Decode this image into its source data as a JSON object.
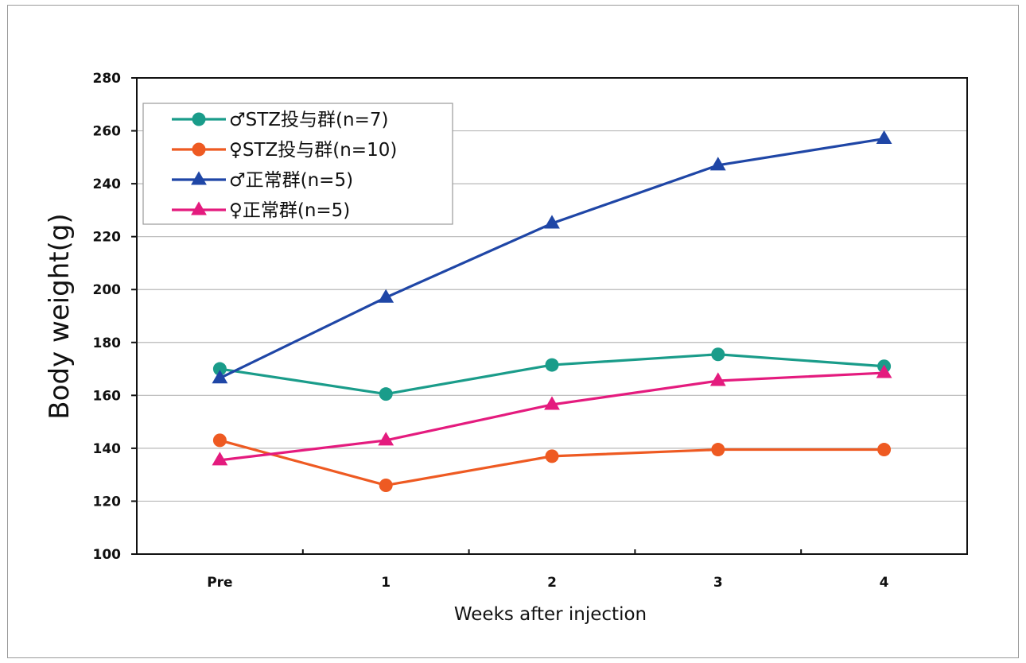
{
  "chart_data": {
    "type": "line",
    "categories": [
      "Pre",
      "1",
      "2",
      "3",
      "4"
    ],
    "xlabel": "Weeks after injection",
    "ylabel": "Body weight(g)",
    "ylim": [
      100,
      280
    ],
    "yticks": [
      100,
      120,
      140,
      160,
      180,
      200,
      220,
      240,
      260,
      280
    ],
    "grid": true,
    "legend_position": "top-left",
    "series": [
      {
        "name": "♂STZ投与群(n=7)",
        "marker": "circle",
        "color": "#1a9c8a",
        "values": [
          170,
          160.5,
          171.5,
          175.5,
          171
        ]
      },
      {
        "name": "♀STZ投与群(n=10)",
        "marker": "circle",
        "color": "#ee5a22",
        "values": [
          143,
          126,
          137,
          139.5,
          139.5
        ]
      },
      {
        "name": "♂正常群(n=5)",
        "marker": "triangle",
        "color": "#1f46a6",
        "values": [
          166.5,
          197,
          225,
          247,
          257
        ]
      },
      {
        "name": "♀正常群(n=5)",
        "marker": "triangle",
        "color": "#e41b7e",
        "values": [
          135.5,
          143,
          156.5,
          165.5,
          168.5
        ]
      }
    ]
  }
}
